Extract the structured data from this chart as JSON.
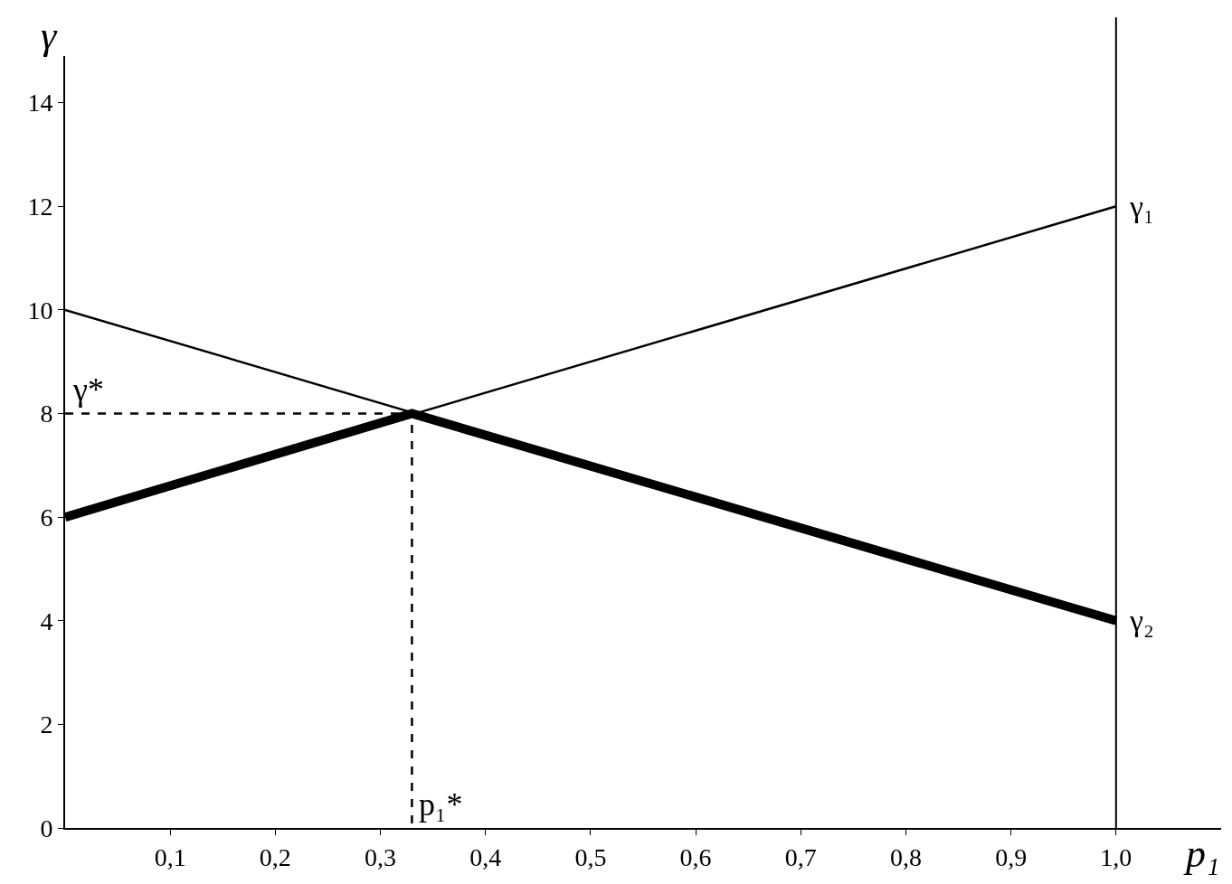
{
  "chart_data": {
    "type": "line",
    "xlabel": "p₁",
    "ylabel": "γ",
    "series": [
      {
        "name": "γ₁",
        "color": "#000000",
        "x": [
          0,
          1
        ],
        "values": [
          6,
          12
        ]
      },
      {
        "name": "γ₂",
        "color": "#000000",
        "x": [
          0,
          1
        ],
        "values": [
          10,
          4
        ]
      },
      {
        "color": "#000000",
        "x": [
          0,
          0.33,
          1
        ],
        "values": [
          6,
          8,
          4
        ]
      },
      {
        "color": "#000000",
        "x": [
          0,
          0.33,
          0.33
        ],
        "values": [
          8,
          8,
          0
        ],
        "line_style": "dashed"
      }
    ],
    "xlim": [
      0,
      1.1
    ],
    "ylim": [
      0,
      14.9
    ],
    "xticks": [
      {
        "value": 0.1,
        "label": "0,1"
      },
      {
        "value": 0.2,
        "label": "0,2"
      },
      {
        "value": 0.3,
        "label": "0,3"
      },
      {
        "value": 0.4,
        "label": "0,4"
      },
      {
        "value": 0.5,
        "label": "0,5"
      },
      {
        "value": 0.6,
        "label": "0,6"
      },
      {
        "value": 0.7,
        "label": "0,7"
      },
      {
        "value": 0.8,
        "label": "0,8"
      },
      {
        "value": 0.9,
        "label": "0,9"
      },
      {
        "value": 1.0,
        "label": "1,0"
      }
    ],
    "yticks": [
      0,
      2,
      4,
      6,
      8,
      10,
      12,
      14
    ],
    "ref_lines": [
      {
        "axis": "x",
        "value": 1
      }
    ],
    "annotations": [
      {
        "text": "γ*",
        "x": 0,
        "y": 8
      },
      {
        "text": "p₁*",
        "x": 0.33,
        "y": 0
      }
    ],
    "legend": false,
    "line_style": "solid"
  }
}
